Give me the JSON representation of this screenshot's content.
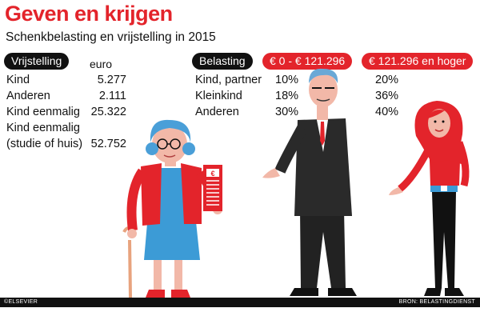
{
  "header": {
    "title": "Geven en krijgen",
    "subtitle": "Schenkbelasting en vrijstelling in 2015"
  },
  "exemption": {
    "label": "Vrijstelling",
    "unit": "euro",
    "rows": [
      {
        "label": "Kind",
        "value": "5.277"
      },
      {
        "label": "Anderen",
        "value": "2.111"
      },
      {
        "label": "Kind eenmalig",
        "value": "25.322"
      },
      {
        "label": "Kind eenmalig",
        "value": ""
      },
      {
        "label": "(studie of huis)",
        "value": "52.752"
      }
    ]
  },
  "tax": {
    "label": "Belasting",
    "bracket_low": "€ 0 - € 121.296",
    "bracket_high": "€ 121.296 en hoger",
    "rows": [
      {
        "label": "Kind, partner",
        "low": "10%",
        "high": "20%"
      },
      {
        "label": "Kleinkind",
        "low": "18%",
        "high": "36%"
      },
      {
        "label": "Anderen",
        "low": "30%",
        "high": "40%"
      }
    ]
  },
  "footer": {
    "left": "©ELSEVIER",
    "right": "BRON: BELASTINGDIENST"
  },
  "colors": {
    "accent": "#e3242b",
    "dark": "#111111",
    "hair_blue": "#4a9fd8",
    "dress_blue": "#3c9bd6"
  },
  "icons": [
    "grandmother-figure",
    "man-in-suit-figure",
    "young-woman-figure",
    "euro-document-icon"
  ]
}
